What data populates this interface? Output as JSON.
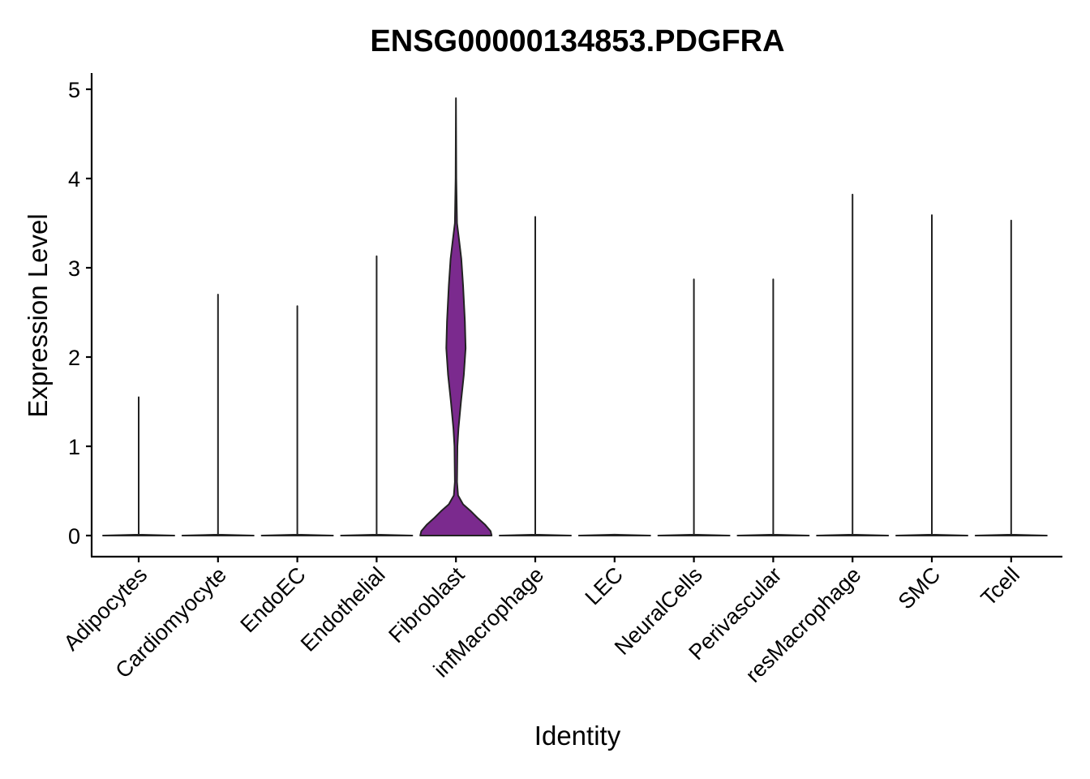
{
  "chart_data": {
    "type": "violin",
    "title": "ENSG00000134853.PDGFRA",
    "xlabel": "Identity",
    "ylabel": "Expression Level",
    "ylim": [
      -0.24,
      5.15
    ],
    "yticks": [
      0,
      1,
      2,
      3,
      4,
      5
    ],
    "grid": false,
    "legend": "none",
    "categories": [
      "Adipocytes",
      "Cardiomyocyte",
      "EndoEC",
      "Endothelial",
      "Fibroblast",
      "infMacrophage",
      "LEC",
      "NeuralCells",
      "Perivascular",
      "resMacrophage",
      "SMC",
      "Tcell"
    ],
    "max_values": [
      1.55,
      2.7,
      2.57,
      3.13,
      4.9,
      3.57,
      0.0,
      2.87,
      2.87,
      3.82,
      3.59,
      3.53
    ],
    "fill_colors": [
      "#F8766D",
      "#DE8C00",
      "#B79F00",
      "#7CAE00",
      "#7B2A8E",
      "#00BA38",
      "#00BFC4",
      "#00B4F0",
      "#619CFF",
      "#C77CFF",
      "#F564E3",
      "#FF64B0"
    ],
    "density_profiles": [
      [
        [
          0,
          1
        ],
        [
          0.01,
          0
        ],
        [
          1.55,
          0
        ]
      ],
      [
        [
          0,
          1
        ],
        [
          0.01,
          0
        ],
        [
          2.7,
          0
        ]
      ],
      [
        [
          0,
          1
        ],
        [
          0.01,
          0
        ],
        [
          2.57,
          0
        ]
      ],
      [
        [
          0,
          1
        ],
        [
          0.01,
          0
        ],
        [
          3.13,
          0
        ]
      ],
      [
        [
          0,
          1
        ],
        [
          0.05,
          0.97
        ],
        [
          0.12,
          0.82
        ],
        [
          0.2,
          0.6
        ],
        [
          0.28,
          0.4
        ],
        [
          0.35,
          0.2
        ],
        [
          0.45,
          0.06
        ],
        [
          0.6,
          0.03
        ],
        [
          1.0,
          0.04
        ],
        [
          1.2,
          0.07
        ],
        [
          1.5,
          0.14
        ],
        [
          1.8,
          0.22
        ],
        [
          2.1,
          0.27
        ],
        [
          2.4,
          0.25
        ],
        [
          2.8,
          0.2
        ],
        [
          3.1,
          0.15
        ],
        [
          3.3,
          0.09
        ],
        [
          3.5,
          0.03
        ],
        [
          4.0,
          0.01
        ],
        [
          4.9,
          0.0
        ]
      ],
      [
        [
          0,
          1
        ],
        [
          0.01,
          0
        ],
        [
          3.57,
          0
        ]
      ],
      [
        [
          0,
          1
        ],
        [
          0.01,
          0
        ]
      ],
      [
        [
          0,
          1
        ],
        [
          0.01,
          0
        ],
        [
          2.87,
          0
        ]
      ],
      [
        [
          0,
          1
        ],
        [
          0.01,
          0
        ],
        [
          2.87,
          0
        ]
      ],
      [
        [
          0,
          1
        ],
        [
          0.01,
          0
        ],
        [
          3.82,
          0
        ]
      ],
      [
        [
          0,
          1
        ],
        [
          0.01,
          0
        ],
        [
          3.59,
          0
        ]
      ],
      [
        [
          0,
          1
        ],
        [
          0.01,
          0
        ],
        [
          3.53,
          0
        ]
      ]
    ]
  }
}
